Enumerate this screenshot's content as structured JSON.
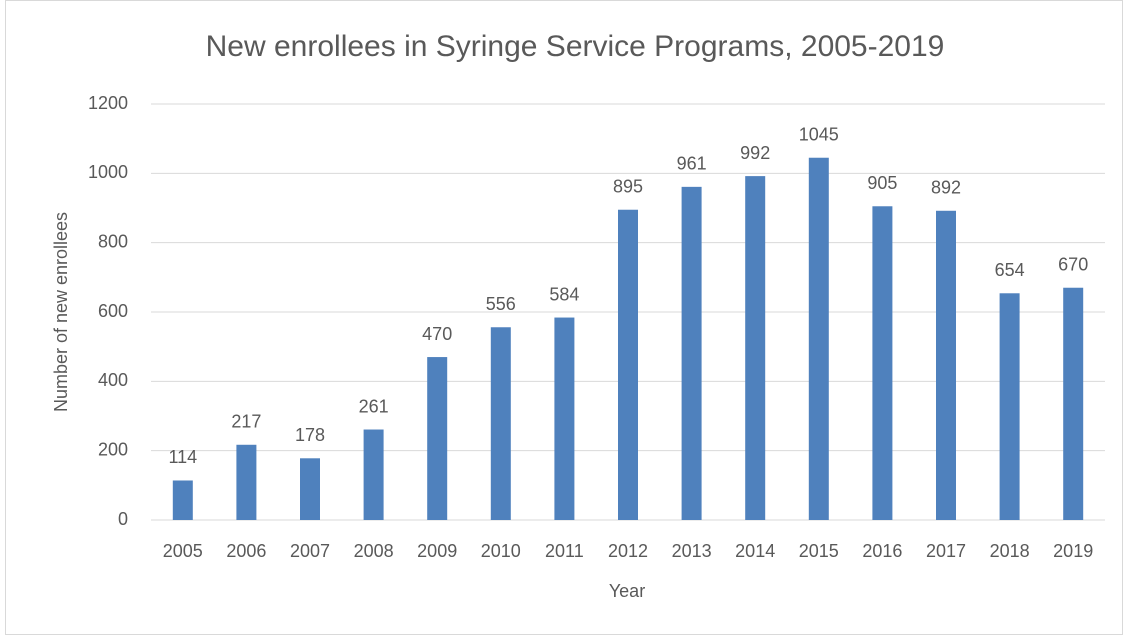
{
  "chart_data": {
    "type": "bar",
    "title": "New enrollees in Syringe Service Programs, 2005-2019",
    "x_label": "Year",
    "y_label": "Number of new enrollees",
    "categories": [
      "2005",
      "2006",
      "2007",
      "2008",
      "2009",
      "2010",
      "2011",
      "2012",
      "2013",
      "2014",
      "2015",
      "2016",
      "2017",
      "2018",
      "2019"
    ],
    "values": [
      114,
      217,
      178,
      261,
      470,
      556,
      584,
      895,
      961,
      992,
      1045,
      905,
      892,
      654,
      670
    ],
    "color": "#4f81bd",
    "ylim": [
      0,
      1200
    ],
    "yticks": [
      0,
      200,
      400,
      600,
      800,
      1000,
      1200
    ],
    "grid": true
  }
}
